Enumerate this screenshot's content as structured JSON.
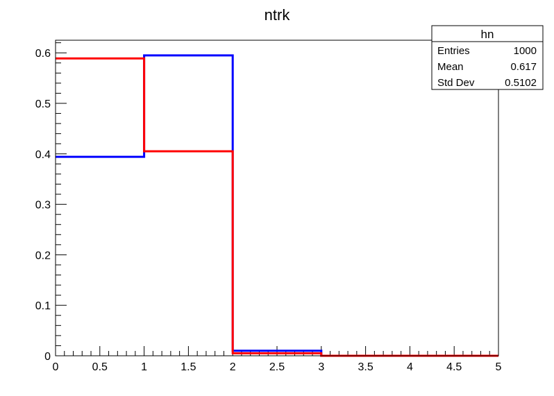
{
  "chart_data": {
    "type": "histogram",
    "title": "ntrk",
    "xlabel": "",
    "ylabel": "",
    "xlim": [
      0,
      5
    ],
    "ylim": [
      0,
      0.625
    ],
    "bin_edges": [
      0,
      1,
      2,
      3,
      4,
      5
    ],
    "x_ticks": [
      {
        "value": 0,
        "label": "0"
      },
      {
        "value": 0.5,
        "label": "0.5"
      },
      {
        "value": 1,
        "label": "1"
      },
      {
        "value": 1.5,
        "label": "1.5"
      },
      {
        "value": 2,
        "label": "2"
      },
      {
        "value": 2.5,
        "label": "2.5"
      },
      {
        "value": 3,
        "label": "3"
      },
      {
        "value": 3.5,
        "label": "3.5"
      },
      {
        "value": 4,
        "label": "4"
      },
      {
        "value": 4.5,
        "label": "4.5"
      },
      {
        "value": 5,
        "label": "5"
      }
    ],
    "y_ticks": [
      {
        "value": 0,
        "label": "0"
      },
      {
        "value": 0.1,
        "label": "0.1"
      },
      {
        "value": 0.2,
        "label": "0.2"
      },
      {
        "value": 0.3,
        "label": "0.3"
      },
      {
        "value": 0.4,
        "label": "0.4"
      },
      {
        "value": 0.5,
        "label": "0.5"
      },
      {
        "value": 0.6,
        "label": "0.6"
      }
    ],
    "series": [
      {
        "color": "#0000ff",
        "values": [
          0.394,
          0.595,
          0.01,
          0.0,
          0.0
        ]
      },
      {
        "color": "#ff0000",
        "values": [
          0.589,
          0.405,
          0.005,
          0.0,
          0.0
        ]
      }
    ],
    "stats_box": {
      "title": "hn",
      "rows": [
        {
          "label": "Entries",
          "value": "1000"
        },
        {
          "label": "Mean",
          "value": "0.617"
        },
        {
          "label": "Std Dev",
          "value": "0.5102"
        }
      ]
    }
  }
}
